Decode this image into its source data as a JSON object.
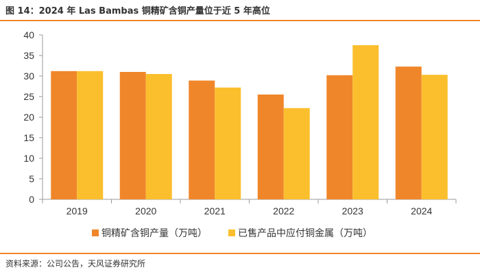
{
  "header": {
    "title": "图 14：2024 年 Las Bambas 铜精矿含铜产量位于近 5 年高位"
  },
  "footer": {
    "source": "资料来源：公司公告，天风证券研究所"
  },
  "colors": {
    "accent": "#f0862a",
    "series_1": "#f0862a",
    "series_2": "#fbbf2d",
    "axis": "#999999",
    "text": "#333333"
  },
  "chart_data": {
    "type": "bar",
    "title": "",
    "xlabel": "",
    "ylabel": "",
    "ylim": [
      0,
      40
    ],
    "yticks": [
      0,
      5,
      10,
      15,
      20,
      25,
      30,
      35,
      40
    ],
    "grid": false,
    "legend_position": "bottom",
    "categories": [
      "2019",
      "2020",
      "2021",
      "2022",
      "2023",
      "2024"
    ],
    "series": [
      {
        "name": "铜精矿含铜产量（万吨）",
        "values": [
          31.2,
          31.0,
          28.9,
          25.5,
          30.2,
          32.3
        ]
      },
      {
        "name": "已售产品中应付铜金属（万吨）",
        "values": [
          31.2,
          30.5,
          27.2,
          22.2,
          37.5,
          30.3
        ]
      }
    ]
  }
}
